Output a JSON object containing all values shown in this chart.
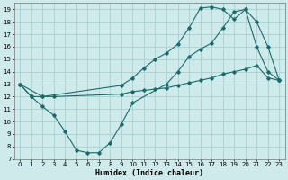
{
  "xlabel": "Humidex (Indice chaleur)",
  "bg_color": "#ceeaea",
  "line_color": "#1a6b6b",
  "grid_color": "#aacfcf",
  "xlim": [
    -0.5,
    23.5
  ],
  "ylim": [
    7,
    19.5
  ],
  "xticks": [
    0,
    1,
    2,
    3,
    4,
    5,
    6,
    7,
    8,
    9,
    10,
    11,
    12,
    13,
    14,
    15,
    16,
    17,
    18,
    19,
    20,
    21,
    22,
    23
  ],
  "yticks": [
    7,
    8,
    9,
    10,
    11,
    12,
    13,
    14,
    15,
    16,
    17,
    18,
    19
  ],
  "line1_x": [
    0,
    1,
    2,
    3,
    4,
    5,
    6,
    7,
    8,
    9,
    10,
    13,
    14,
    15,
    16,
    17,
    18,
    19,
    20,
    21,
    22,
    23
  ],
  "line1_y": [
    13,
    12,
    11.2,
    10.5,
    9.2,
    7.7,
    7.5,
    7.5,
    8.3,
    9.8,
    11.5,
    13,
    14,
    15.2,
    15.8,
    16.3,
    17.5,
    18.8,
    19.0,
    18.0,
    16.0,
    13.3
  ],
  "line2_x": [
    0,
    1,
    2,
    3,
    9,
    10,
    11,
    12,
    13,
    14,
    15,
    16,
    17,
    18,
    19,
    20,
    21,
    22,
    23
  ],
  "line2_y": [
    13,
    12,
    12,
    12,
    12.2,
    12.4,
    12.5,
    12.6,
    12.7,
    12.9,
    13.1,
    13.3,
    13.5,
    13.8,
    14.0,
    14.2,
    14.5,
    13.5,
    13.3
  ],
  "line3_x": [
    0,
    2,
    9,
    10,
    11,
    12,
    13,
    14,
    15,
    16,
    17,
    18,
    19,
    20,
    21,
    22,
    23
  ],
  "line3_y": [
    13,
    12,
    12.9,
    13.5,
    14.3,
    15.0,
    15.5,
    16.2,
    17.5,
    19.1,
    19.2,
    19.0,
    18.2,
    19.0,
    16.0,
    14.0,
    13.3
  ]
}
